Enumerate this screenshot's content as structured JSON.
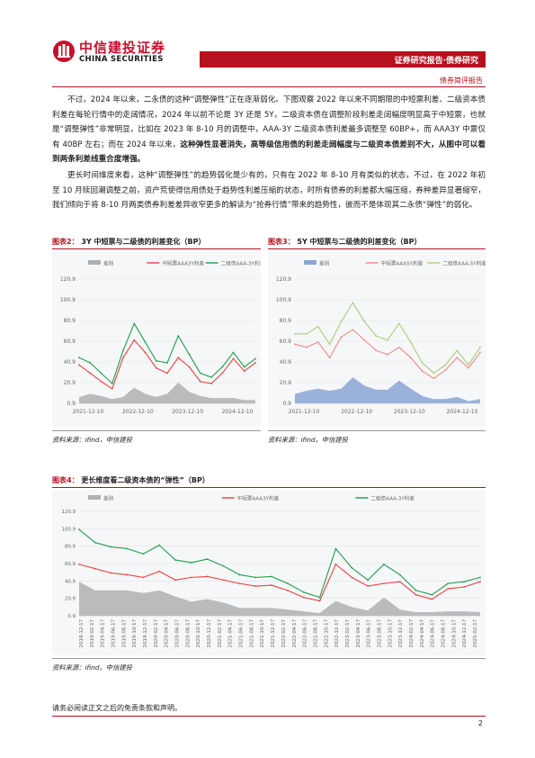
{
  "header": {
    "logo_cn": "中信建投证券",
    "logo_en": "CHINA SECURITIES",
    "band_text": "证券研究报告·债券研究",
    "sub_title": "债券简评报告",
    "colors": {
      "brand_red": "#b4121e"
    }
  },
  "body": {
    "paragraph1_a": "不过，2024 年以来，二永债的这种“调整弹性”正在逐渐弱化。下图观察 2022 年以来不同期限的中短票利差、二级资本债利差在每轮行情中的走阔情况，2024 年以前不论是 3Y 还是 5Y，二级资本债在调整阶段利差走阔幅度明显高于中短票，也就是“调整弹性”非常明显，比如在 2023 年 8-10 月的调整中，AAA-3Y 二级资本债利差最多调整至 60BP+，而 AAA3Y 中票仅有 40BP 左右；而在 2024 年以来，",
    "paragraph1_b": "这种弹性显著消失，高等级信用债的利差走阔幅度与二级资本债差别不大，从图中可以看到两条利差线重合度增强。",
    "paragraph2": "更长时间维度来看，这种“调整弹性”的趋势弱化是少有的，只有在 2022 年 8-10 月有类似的状态，不过，在 2022 年初至 10 月赎回潮调整之前，资产荒使得信用债处于趋势性利差压缩的状态，时所有债券的利差都大幅压缩，券种差异显著缩窄，我们倾向于将 8-10 月两类债券利差差异收窄更多的解读为“抢券行情”带来的趋势性，彼而不是体现其二永债“弹性”的弱化。"
  },
  "figures": [
    {
      "label": "图表2：",
      "title": "3Y 中短票与二级债的利差变化（BP）",
      "source": "资料来源：ifind，中信建投"
    },
    {
      "label": "图表3：",
      "title": "5Y 中短票与二级债的利差变化（BP）",
      "source": "资料来源：ifind，中信建投"
    },
    {
      "label": "图表4：",
      "title": "更长维度看二级资本债的“弹性”（BP）",
      "source": "资料来源：ifind，中信建投"
    }
  ],
  "chart_data": [
    {
      "type": "line",
      "title": "3Y 中短票与二级债的利差变化（BP）",
      "legend": [
        "差别",
        "中短票AAA3Y利差",
        "二级债AAA-3Y利差"
      ],
      "legend_position": "top",
      "series_colors": [
        "#b0b0b0",
        "#e8423f",
        "#1e9e4a"
      ],
      "area_series": "差别",
      "yticks": [
        "0.9",
        "20.9",
        "40.9",
        "60.9",
        "80.9",
        "100.9",
        "120.9"
      ],
      "ylim": [
        0.9,
        120.9
      ],
      "xticks": [
        "2021-12-10",
        "2022-12-10",
        "2023-12-10",
        "2024-12-10"
      ],
      "x": [
        "2021-12",
        "2022-03",
        "2022-06",
        "2022-08",
        "2022-10",
        "2022-12",
        "2023-03",
        "2023-06",
        "2023-08",
        "2023-10",
        "2023-12",
        "2024-03",
        "2024-06",
        "2024-09",
        "2024-10",
        "2024-12",
        "2025-02"
      ],
      "series": [
        {
          "name": "中短票AAA3Y利差",
          "values": [
            38,
            30,
            22,
            15,
            45,
            62,
            50,
            35,
            30,
            45,
            36,
            22,
            20,
            30,
            44,
            32,
            40
          ]
        },
        {
          "name": "二级债AAA-3Y利差",
          "values": [
            45,
            40,
            30,
            20,
            52,
            78,
            60,
            42,
            40,
            66,
            48,
            30,
            26,
            36,
            50,
            36,
            44
          ]
        },
        {
          "name": "差别",
          "values": [
            7,
            10,
            8,
            5,
            7,
            16,
            10,
            7,
            10,
            21,
            12,
            8,
            6,
            6,
            6,
            4,
            4
          ]
        }
      ]
    },
    {
      "type": "line",
      "title": "5Y 中短票与二级债的利差变化（BP）",
      "legend": [
        "差别",
        "中短票AAA5Y利差",
        "二级债AAA-5Y利差"
      ],
      "legend_position": "top",
      "series_colors": [
        "#8aa4d6",
        "#f08a80",
        "#a8cf7a"
      ],
      "area_series": "差别",
      "yticks": [
        "0.9",
        "20.9",
        "40.9",
        "60.9",
        "80.9",
        "100.9",
        "120.9"
      ],
      "ylim": [
        0.9,
        120.9
      ],
      "xticks": [
        "2021-12-10",
        "2022-12-10",
        "2023-12-10",
        "2024-12-10"
      ],
      "x": [
        "2021-12",
        "2022-03",
        "2022-06",
        "2022-08",
        "2022-10",
        "2022-12",
        "2023-03",
        "2023-06",
        "2023-08",
        "2023-10",
        "2023-12",
        "2024-03",
        "2024-06",
        "2024-09",
        "2024-10",
        "2024-12",
        "2025-02"
      ],
      "series": [
        {
          "name": "中短票AAA5Y利差",
          "values": [
            58,
            55,
            60,
            45,
            65,
            72,
            62,
            52,
            48,
            55,
            45,
            32,
            25,
            33,
            45,
            35,
            50
          ]
        },
        {
          "name": "二级债AAA-5Y利差",
          "values": [
            68,
            68,
            75,
            58,
            80,
            98,
            80,
            66,
            62,
            78,
            60,
            40,
            30,
            38,
            52,
            38,
            55
          ]
        },
        {
          "name": "差别",
          "values": [
            10,
            13,
            15,
            13,
            15,
            26,
            18,
            14,
            14,
            23,
            15,
            8,
            5,
            5,
            7,
            3,
            5
          ]
        }
      ]
    },
    {
      "type": "line",
      "title": "更长维度看二级资本债的“弹性”（BP）",
      "legend": [
        "差别",
        "中短票AAA3Y利差",
        "二级债AAA-3Y利差"
      ],
      "legend_position": "top",
      "series_colors": [
        "#b0b0b0",
        "#e8423f",
        "#1e9e4a"
      ],
      "area_series": "差别",
      "yticks": [
        "0.9",
        "20.9",
        "40.9",
        "60.9",
        "80.9",
        "100.9",
        "120.9"
      ],
      "ylim": [
        0.9,
        120.9
      ],
      "xticks": [
        "2018-12-17",
        "2019-02-17",
        "2019-04-17",
        "2019-06-17",
        "2019-08-17",
        "2019-10-17",
        "2019-12-17",
        "2020-02-17",
        "2020-04-17",
        "2020-06-17",
        "2020-08-17",
        "2020-10-17",
        "2020-12-17",
        "2021-02-17",
        "2021-04-17",
        "2021-06-17",
        "2021-08-17",
        "2021-10-17",
        "2021-12-17",
        "2022-02-17",
        "2022-04-17",
        "2022-06-17",
        "2022-08-17",
        "2022-10-17",
        "2022-12-17",
        "2023-02-17",
        "2023-04-17",
        "2023-06-17",
        "2023-08-17",
        "2023-10-17",
        "2023-12-17",
        "2024-02-17",
        "2024-04-17",
        "2024-06-17",
        "2024-08-17",
        "2024-10-17",
        "2024-12-17",
        "2025-02-17"
      ],
      "x": [
        "2018-12",
        "2019-03",
        "2019-06",
        "2019-09",
        "2019-12",
        "2020-03",
        "2020-06",
        "2020-09",
        "2020-12",
        "2021-03",
        "2021-06",
        "2021-09",
        "2021-12",
        "2022-03",
        "2022-06",
        "2022-09",
        "2022-12",
        "2023-03",
        "2023-06",
        "2023-09",
        "2023-12",
        "2024-03",
        "2024-06",
        "2024-09",
        "2024-12",
        "2025-02"
      ],
      "series": [
        {
          "name": "中短票AAA3Y利差",
          "values": [
            60,
            55,
            50,
            48,
            45,
            52,
            42,
            45,
            46,
            42,
            38,
            35,
            36,
            30,
            22,
            18,
            60,
            45,
            35,
            38,
            40,
            25,
            20,
            32,
            34,
            40
          ]
        },
        {
          "name": "二级债AAA-3Y利差",
          "values": [
            100,
            85,
            80,
            78,
            72,
            82,
            65,
            62,
            66,
            58,
            48,
            45,
            46,
            38,
            28,
            22,
            78,
            56,
            42,
            60,
            48,
            30,
            25,
            38,
            40,
            45
          ]
        },
        {
          "name": "差别",
          "values": [
            40,
            30,
            30,
            30,
            27,
            30,
            23,
            17,
            20,
            16,
            10,
            10,
            10,
            8,
            6,
            4,
            18,
            11,
            7,
            22,
            8,
            5,
            5,
            6,
            6,
            5
          ]
        }
      ]
    }
  ],
  "footer": {
    "disclaimer": "请务必阅读正文之后的免责条款和声明。",
    "page_number": "2"
  }
}
